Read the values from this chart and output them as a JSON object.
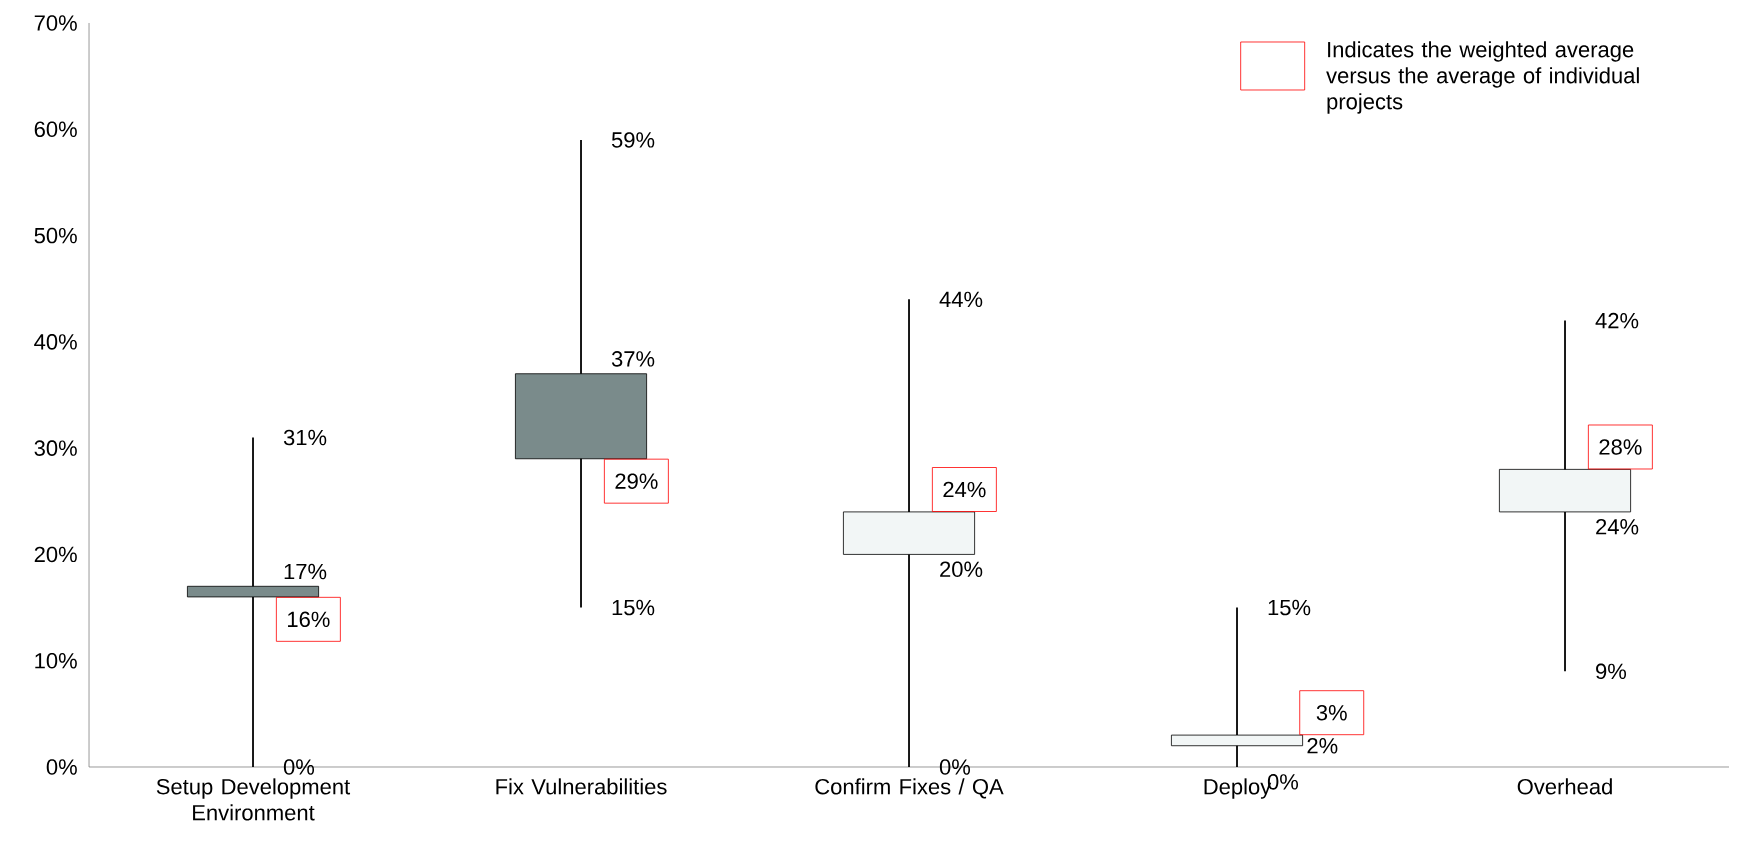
{
  "chart_data": {
    "type": "candlestick",
    "categories": [
      "Setup Development Environment",
      "Fix Vulnerabilities",
      "Confirm Fixes / QA",
      "Deploy",
      "Overhead"
    ],
    "ohlc": [
      [
        17,
        31,
        0,
        16
      ],
      [
        37,
        59,
        15,
        29
      ],
      [
        20,
        44,
        0,
        24
      ],
      [
        2,
        15,
        0,
        3
      ],
      [
        24,
        42,
        9,
        28
      ]
    ],
    "value_labels": [
      [
        "17%",
        "31%",
        "0%",
        "16%"
      ],
      [
        "37%",
        "59%",
        "15%",
        "29%"
      ],
      [
        "20%",
        "44%",
        "0%",
        "24%"
      ],
      [
        "2%",
        "15%",
        "0%",
        "3%"
      ],
      [
        "24%",
        "42%",
        "9%",
        "28%"
      ]
    ],
    "colors": [
      "#7a8b8b",
      "#7a8b8b",
      "#f2f6f6",
      "#f2f6f6",
      "#f2f6f6"
    ],
    "ylim": [
      0,
      70
    ],
    "yticks": [
      {
        "value": 0,
        "label": "0%"
      },
      {
        "value": 10,
        "label": "10%"
      },
      {
        "value": 20,
        "label": "20%"
      },
      {
        "value": 30,
        "label": "30%"
      },
      {
        "value": 40,
        "label": "40%"
      },
      {
        "value": 50,
        "label": "50%"
      },
      {
        "value": 60,
        "label": "60%"
      },
      {
        "value": 70,
        "label": "70%"
      }
    ],
    "annotations": [
      "Indicates the weighted average versus the average of individual projects"
    ]
  }
}
